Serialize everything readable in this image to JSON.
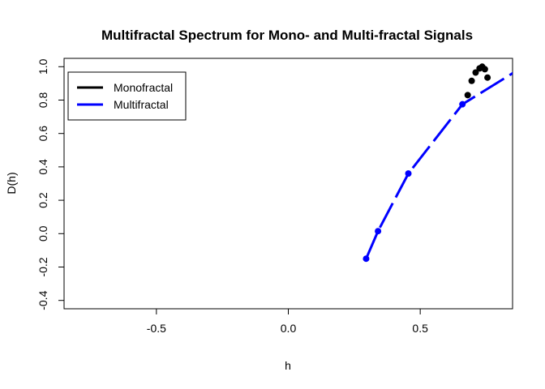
{
  "chart_data": {
    "type": "scatter",
    "title": "Multifractal Spectrum for Mono- and Multi-fractal Signals",
    "xlabel": "h",
    "ylabel": "D(h)",
    "xlim": [
      -0.85,
      0.85
    ],
    "ylim": [
      -0.45,
      1.05
    ],
    "x_ticks": [
      -0.5,
      0.0,
      0.5
    ],
    "x_tick_labels": [
      "-0.5",
      "0.0",
      "0.5"
    ],
    "y_ticks": [
      -0.4,
      -0.2,
      0.0,
      0.2,
      0.4,
      0.6,
      0.8,
      1.0
    ],
    "y_tick_labels": [
      "-0.4",
      "-0.2",
      "0.0",
      "0.2",
      "0.4",
      "0.6",
      "0.8",
      "1.0"
    ],
    "grid": false,
    "legend": {
      "position": "top-left",
      "entries": [
        "Monofractal",
        "Multifractal"
      ]
    },
    "series": [
      {
        "name": "Monofractal",
        "color": "#000000",
        "style": "points",
        "x": [
          0.68,
          0.695,
          0.71,
          0.725,
          0.735,
          0.745,
          0.755
        ],
        "y": [
          0.83,
          0.915,
          0.965,
          0.99,
          1.0,
          0.985,
          0.935
        ]
      },
      {
        "name": "Multifractal",
        "color": "#0000ff",
        "style": "line+points",
        "x": [
          0.295,
          0.34,
          0.455,
          0.66,
          0.87
        ],
        "y": [
          -0.15,
          0.015,
          0.36,
          0.775,
          0.98
        ],
        "marker_count": 4
      }
    ]
  }
}
